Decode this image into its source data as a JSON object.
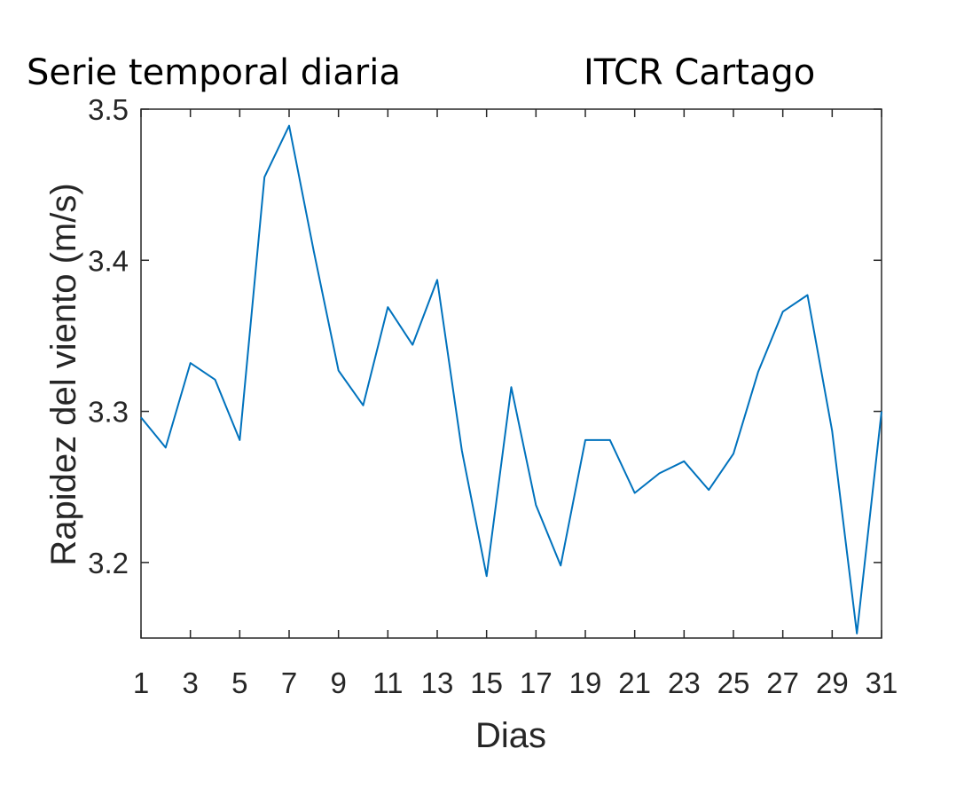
{
  "chart_data": {
    "type": "line",
    "title": "Serie temporal diaria",
    "subtitle": "ITCR Cartago",
    "xlabel": "Dias",
    "ylabel": "Rapidez del viento (m/s)",
    "xlim": [
      1,
      31
    ],
    "ylim": [
      3.15,
      3.5
    ],
    "xticks": [
      1,
      3,
      5,
      7,
      9,
      11,
      13,
      15,
      17,
      19,
      21,
      23,
      25,
      27,
      29,
      31
    ],
    "yticks": [
      3.2,
      3.3,
      3.4,
      3.5
    ],
    "ytick_labels": [
      "3.2",
      "3.3",
      "3.4",
      "3.5"
    ],
    "grid": false,
    "line_color": "#0072BD",
    "series": [
      {
        "x": [
          1,
          2,
          3,
          4,
          5,
          6,
          7,
          8,
          9,
          10,
          11,
          12,
          13,
          14,
          15,
          16,
          17,
          18,
          19,
          20,
          21,
          22,
          23,
          24,
          25,
          26,
          27,
          28,
          29,
          30,
          31
        ],
        "values": [
          3.296,
          3.276,
          3.332,
          3.321,
          3.281,
          3.455,
          3.489,
          3.406,
          3.327,
          3.304,
          3.369,
          3.344,
          3.387,
          3.274,
          3.191,
          3.316,
          3.238,
          3.198,
          3.281,
          3.281,
          3.246,
          3.259,
          3.267,
          3.248,
          3.272,
          3.326,
          3.366,
          3.377,
          3.287,
          3.153,
          3.3
        ]
      }
    ]
  }
}
